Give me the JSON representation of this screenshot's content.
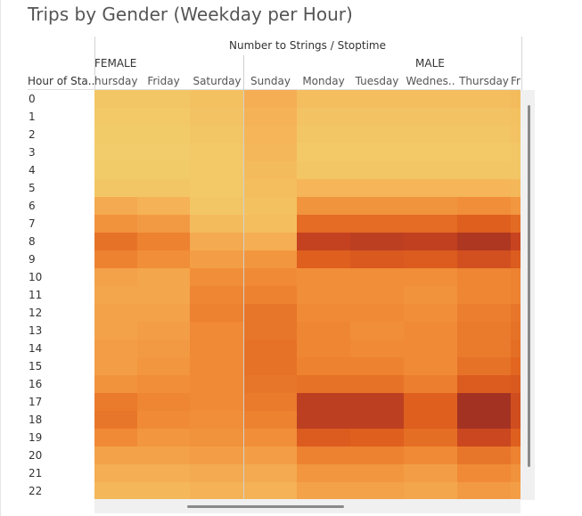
{
  "title": "Trips by Gender (Weekday per Hour)",
  "column_title": "Number to Strings / Stoptime",
  "row_header": "Hour of Sta..",
  "groups": [
    "FEMALE",
    "MALE"
  ],
  "colors": {
    "scale": [
      "#f2cf6c",
      "#f5b256",
      "#f08a36",
      "#e0621e",
      "#c84420",
      "#a33222"
    ]
  },
  "chart_data": {
    "type": "heatmap",
    "title": "Trips by Gender (Weekday per Hour)",
    "xlabel": "Number to Strings / Stoptime",
    "ylabel": "Hour of Sta..",
    "columns": [
      {
        "group": "FEMALE",
        "label": "hursday"
      },
      {
        "group": "FEMALE",
        "label": "Friday"
      },
      {
        "group": "FEMALE",
        "label": "Saturday"
      },
      {
        "group": "MALE",
        "label": "Sunday"
      },
      {
        "group": "MALE",
        "label": "Monday"
      },
      {
        "group": "MALE",
        "label": "Tuesday"
      },
      {
        "group": "MALE",
        "label": "Wednes.."
      },
      {
        "group": "MALE",
        "label": "Thursday"
      },
      {
        "group": "MALE",
        "label": "Fr"
      }
    ],
    "rows": [
      "0",
      "1",
      "2",
      "3",
      "4",
      "5",
      "6",
      "7",
      "8",
      "9",
      "10",
      "11",
      "12",
      "13",
      "14",
      "15",
      "16",
      "17",
      "18",
      "19",
      "20",
      "21",
      "22"
    ],
    "values": [
      [
        0.06,
        0.06,
        0.1,
        0.22,
        0.12,
        0.12,
        0.12,
        0.12,
        0.14
      ],
      [
        0.04,
        0.04,
        0.08,
        0.2,
        0.08,
        0.08,
        0.08,
        0.08,
        0.1
      ],
      [
        0.03,
        0.03,
        0.06,
        0.18,
        0.06,
        0.06,
        0.06,
        0.06,
        0.08
      ],
      [
        0.02,
        0.02,
        0.04,
        0.16,
        0.04,
        0.04,
        0.04,
        0.04,
        0.06
      ],
      [
        0.03,
        0.03,
        0.04,
        0.14,
        0.06,
        0.06,
        0.06,
        0.06,
        0.06
      ],
      [
        0.06,
        0.06,
        0.04,
        0.12,
        0.18,
        0.18,
        0.18,
        0.18,
        0.16
      ],
      [
        0.24,
        0.2,
        0.06,
        0.1,
        0.35,
        0.35,
        0.35,
        0.38,
        0.34
      ],
      [
        0.36,
        0.32,
        0.14,
        0.12,
        0.55,
        0.55,
        0.55,
        0.62,
        0.56
      ],
      [
        0.52,
        0.44,
        0.24,
        0.22,
        0.82,
        0.86,
        0.84,
        0.94,
        0.8
      ],
      [
        0.44,
        0.38,
        0.3,
        0.34,
        0.62,
        0.66,
        0.64,
        0.72,
        0.64
      ],
      [
        0.28,
        0.26,
        0.38,
        0.4,
        0.38,
        0.38,
        0.38,
        0.42,
        0.44
      ],
      [
        0.26,
        0.26,
        0.42,
        0.44,
        0.38,
        0.38,
        0.36,
        0.42,
        0.44
      ],
      [
        0.28,
        0.28,
        0.44,
        0.5,
        0.4,
        0.4,
        0.38,
        0.46,
        0.5
      ],
      [
        0.28,
        0.3,
        0.4,
        0.5,
        0.42,
        0.38,
        0.4,
        0.48,
        0.52
      ],
      [
        0.3,
        0.32,
        0.4,
        0.52,
        0.42,
        0.4,
        0.4,
        0.48,
        0.54
      ],
      [
        0.3,
        0.34,
        0.4,
        0.52,
        0.44,
        0.44,
        0.4,
        0.52,
        0.58
      ],
      [
        0.36,
        0.38,
        0.4,
        0.5,
        0.52,
        0.52,
        0.46,
        0.64,
        0.66
      ],
      [
        0.48,
        0.42,
        0.4,
        0.48,
        0.86,
        0.86,
        0.62,
        1.0,
        0.74
      ],
      [
        0.5,
        0.4,
        0.38,
        0.44,
        0.86,
        0.86,
        0.62,
        1.0,
        0.74
      ],
      [
        0.4,
        0.34,
        0.36,
        0.38,
        0.64,
        0.62,
        0.54,
        0.78,
        0.62
      ],
      [
        0.28,
        0.28,
        0.3,
        0.3,
        0.44,
        0.44,
        0.4,
        0.5,
        0.44
      ],
      [
        0.22,
        0.22,
        0.24,
        0.24,
        0.34,
        0.34,
        0.3,
        0.4,
        0.36
      ],
      [
        0.16,
        0.16,
        0.2,
        0.2,
        0.28,
        0.28,
        0.26,
        0.32,
        0.3
      ]
    ]
  }
}
